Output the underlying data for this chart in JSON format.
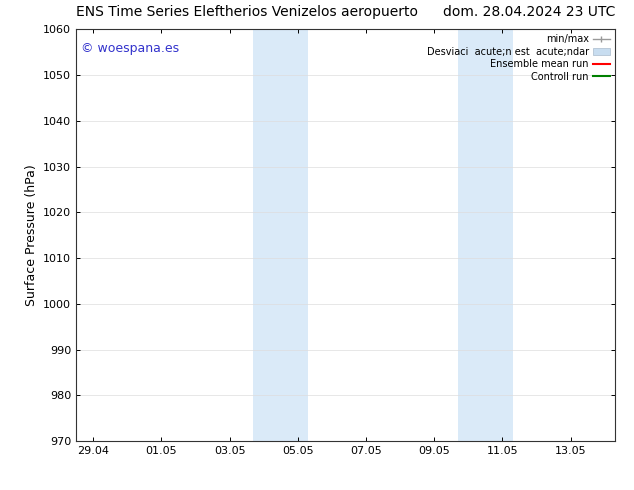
{
  "title_left": "ENS Time Series Eleftherios Venizelos aeropuerto",
  "title_right": "dom. 28.04.2024 23 UTC",
  "ylabel": "Surface Pressure (hPa)",
  "ylim": [
    970,
    1060
  ],
  "yticks": [
    970,
    980,
    990,
    1000,
    1010,
    1020,
    1030,
    1040,
    1050,
    1060
  ],
  "xtick_labels": [
    "29.04",
    "01.05",
    "03.05",
    "05.05",
    "07.05",
    "09.05",
    "11.05",
    "13.05"
  ],
  "xtick_positions": [
    0,
    2,
    4,
    6,
    8,
    10,
    12,
    14
  ],
  "xmin": -0.5,
  "xmax": 15.3,
  "shaded_bands": [
    {
      "x_start": 4.7,
      "x_end": 6.3
    },
    {
      "x_start": 10.7,
      "x_end": 12.3
    }
  ],
  "shade_color": "#daeaf8",
  "background_color": "#ffffff",
  "watermark_text": "© woespana.es",
  "watermark_color": "#3333cc",
  "legend_label_minmax": "min/max",
  "legend_label_std": "Desviaci  acute;n est  acute;ndar",
  "legend_label_ens": "Ensemble mean run",
  "legend_label_ctrl": "Controll run",
  "color_minmax": "#999999",
  "color_std": "#c8ddf0",
  "color_ens": "#ff0000",
  "color_ctrl": "#008000",
  "title_fontsize": 10,
  "tick_fontsize": 8,
  "legend_fontsize": 7,
  "ylabel_fontsize": 9,
  "watermark_fontsize": 9
}
